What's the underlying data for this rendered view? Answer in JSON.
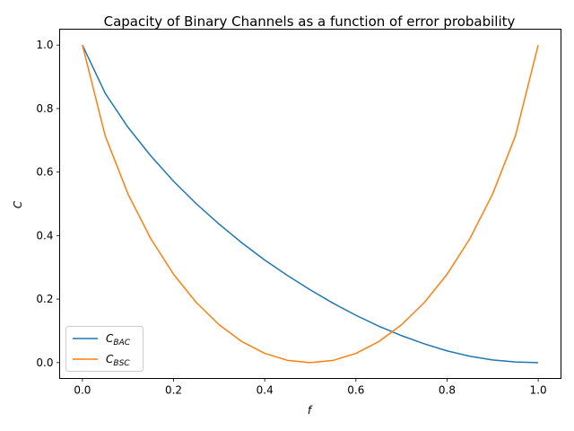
{
  "chart_data": {
    "type": "line",
    "title": "Capacity of Binary Channels as a function of error probability",
    "xlabel": "f",
    "ylabel": "C",
    "xlim": [
      -0.05,
      1.05
    ],
    "ylim": [
      -0.05,
      1.05
    ],
    "xticks": [
      0.0,
      0.2,
      0.4,
      0.6,
      0.8,
      1.0
    ],
    "xtick_labels": [
      "0.0",
      "0.2",
      "0.4",
      "0.6",
      "0.8",
      "1.0"
    ],
    "yticks": [
      0.0,
      0.2,
      0.4,
      0.6,
      0.8,
      1.0
    ],
    "ytick_labels": [
      "0.0",
      "0.2",
      "0.4",
      "0.6",
      "0.8",
      "1.0"
    ],
    "grid": false,
    "legend_position": "lower-left",
    "x": [
      0.0,
      0.05,
      0.1,
      0.15,
      0.2,
      0.25,
      0.3,
      0.35,
      0.4,
      0.45,
      0.5,
      0.55,
      0.6,
      0.65,
      0.7,
      0.75,
      0.8,
      0.85,
      0.9,
      0.95,
      1.0
    ],
    "series": [
      {
        "name_main": "C",
        "name_sub": "BAC",
        "color": "#1f77b4",
        "values": [
          1.0,
          0.848,
          0.741,
          0.651,
          0.571,
          0.5,
          0.436,
          0.377,
          0.323,
          0.274,
          0.229,
          0.187,
          0.149,
          0.115,
          0.085,
          0.059,
          0.037,
          0.02,
          0.0084,
          0.0018,
          0.0
        ]
      },
      {
        "name_main": "C",
        "name_sub": "BSC",
        "color": "#ff7f0e",
        "values": [
          1.0,
          0.714,
          0.531,
          0.39,
          0.278,
          0.189,
          0.119,
          0.066,
          0.029,
          0.007,
          0.0,
          0.007,
          0.029,
          0.066,
          0.119,
          0.189,
          0.278,
          0.39,
          0.531,
          0.714,
          1.0
        ]
      }
    ]
  }
}
